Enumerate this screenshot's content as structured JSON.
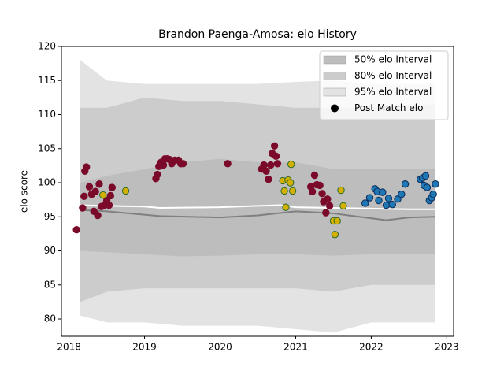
{
  "chart_data": {
    "type": "band-scatter",
    "title": "Brandon Paenga-Amosa: elo History",
    "ylabel": "elo score",
    "xlim": [
      2017.9,
      2023.09
    ],
    "ylim": [
      77.46,
      120
    ],
    "xticks": [
      2018,
      2019,
      2020,
      2021,
      2022,
      2023
    ],
    "yticks": [
      80,
      85,
      90,
      95,
      100,
      105,
      110,
      115,
      120
    ],
    "legend": "upper right",
    "band_x": [
      2018.15,
      2018.5,
      2019.0,
      2019.5,
      2020.0,
      2020.5,
      2021.0,
      2021.5,
      2022.0,
      2022.5,
      2022.85
    ],
    "bands": [
      {
        "name": "95% elo Interval",
        "color": "#e3e3e3",
        "upper": [
          118,
          115,
          114.5,
          114.5,
          114.5,
          114.5,
          114.8,
          115,
          114.5,
          114.5,
          114.5
        ],
        "lower": [
          80.5,
          79.5,
          79.5,
          79,
          79,
          79,
          78.5,
          78,
          79.5,
          79.5,
          79.5
        ]
      },
      {
        "name": "80% elo Interval",
        "color": "#cccccc",
        "upper": [
          111,
          111,
          112.5,
          112,
          112,
          111.5,
          111,
          111,
          111,
          111.5,
          111.5
        ],
        "lower": [
          82.5,
          84,
          84.5,
          84.5,
          84.5,
          84.5,
          84.5,
          84,
          85,
          85,
          85
        ]
      },
      {
        "name": "50% elo Interval",
        "color": "#bdbdbd",
        "upper": [
          100,
          101,
          102,
          103,
          103.5,
          103,
          103,
          102,
          102,
          102,
          102
        ],
        "lower": [
          90,
          89.8,
          89.5,
          89.2,
          89.3,
          89.5,
          89.5,
          89.3,
          89.5,
          89.5,
          89.5
        ]
      }
    ],
    "lines": [
      {
        "color": "#808080",
        "x": [
          2018.15,
          2018.5,
          2019.0,
          2019.2,
          2020.0,
          2020.5,
          2021.0,
          2021.5,
          2021.7,
          2022.2,
          2022.5,
          2022.85
        ],
        "values": [
          96.0,
          95.8,
          95.3,
          95.1,
          94.9,
          95.2,
          95.8,
          95.5,
          95.2,
          94.5,
          94.9,
          95.0
        ]
      },
      {
        "color": "#ffffff",
        "x": [
          2018.15,
          2018.5,
          2019.0,
          2019.2,
          2020.0,
          2020.5,
          2020.8,
          2021.0,
          2021.5,
          2022.0,
          2022.5,
          2022.85
        ],
        "values": [
          96.7,
          96.6,
          96.5,
          96.3,
          96.4,
          96.6,
          96.7,
          96.4,
          96.3,
          96.2,
          96.1,
          96.1
        ]
      }
    ],
    "marker_label": {
      "name": "Post Match elo",
      "color": "#000000"
    },
    "series": [
      {
        "color": "#7b0a2a",
        "edgecolor": "#7b0a2a",
        "x": [
          2018.1,
          2018.18,
          2018.2,
          2018.21,
          2018.23,
          2018.27,
          2018.3,
          2018.33,
          2018.35,
          2018.38,
          2018.4,
          2018.43,
          2018.47,
          2018.5,
          2018.53,
          2018.55,
          2018.57,
          2019.15,
          2019.17,
          2019.19,
          2019.22,
          2019.25,
          2019.27,
          2019.3,
          2019.33,
          2019.36,
          2019.4,
          2019.45,
          2019.48,
          2019.51,
          2020.1,
          2020.55,
          2020.58,
          2020.61,
          2020.64,
          2020.67,
          2020.69,
          2020.72,
          2020.74,
          2020.76,
          2021.2,
          2021.22,
          2021.25,
          2021.28,
          2021.32,
          2021.35,
          2021.37,
          2021.4,
          2021.42,
          2021.45
        ],
        "values": [
          93.1,
          96.3,
          98,
          101.7,
          102.3,
          99.4,
          98.3,
          95.8,
          98.7,
          95.2,
          99.8,
          96.5,
          96.7,
          97.4,
          96.7,
          98.1,
          99.3,
          100.6,
          101.2,
          102.4,
          103,
          102.6,
          103.5,
          103.5,
          103.4,
          102.8,
          103.3,
          103.3,
          102.8,
          102.8,
          102.8,
          102,
          102.6,
          101.7,
          100.5,
          102.6,
          104.3,
          105.4,
          103.9,
          102.8,
          99.4,
          98.7,
          101.1,
          99.7,
          99.6,
          98.4,
          97.2,
          95.6,
          97.6,
          96.6
        ]
      },
      {
        "color": "#d4b000",
        "edgecolor": "#2e6b2e",
        "x": [
          2018.45,
          2018.75,
          2020.83,
          2020.85,
          2020.87,
          2020.9,
          2020.93,
          2020.94,
          2020.96,
          2021.5,
          2021.52,
          2021.55,
          2021.6,
          2021.63
        ],
        "values": [
          98.2,
          98.8,
          100.3,
          98.8,
          96.4,
          100.4,
          100,
          102.7,
          98.8,
          94.4,
          92.4,
          94.4,
          98.9,
          96.6
        ]
      },
      {
        "color": "#1f77b4",
        "edgecolor": "#0a2a5a",
        "x": [
          2021.92,
          2021.98,
          2022.05,
          2022.08,
          2022.1,
          2022.15,
          2022.2,
          2022.23,
          2022.28,
          2022.35,
          2022.4,
          2022.45,
          2022.65,
          2022.68,
          2022.7,
          2022.72,
          2022.74,
          2022.77,
          2022.8,
          2022.82,
          2022.85
        ],
        "values": [
          97,
          97.8,
          99.1,
          98.7,
          97.4,
          98.6,
          96.7,
          97.7,
          96.8,
          97.6,
          98.3,
          99.8,
          100.5,
          100.7,
          99.6,
          101,
          99.3,
          97.4,
          97.8,
          98.3,
          99.8
        ]
      }
    ]
  }
}
